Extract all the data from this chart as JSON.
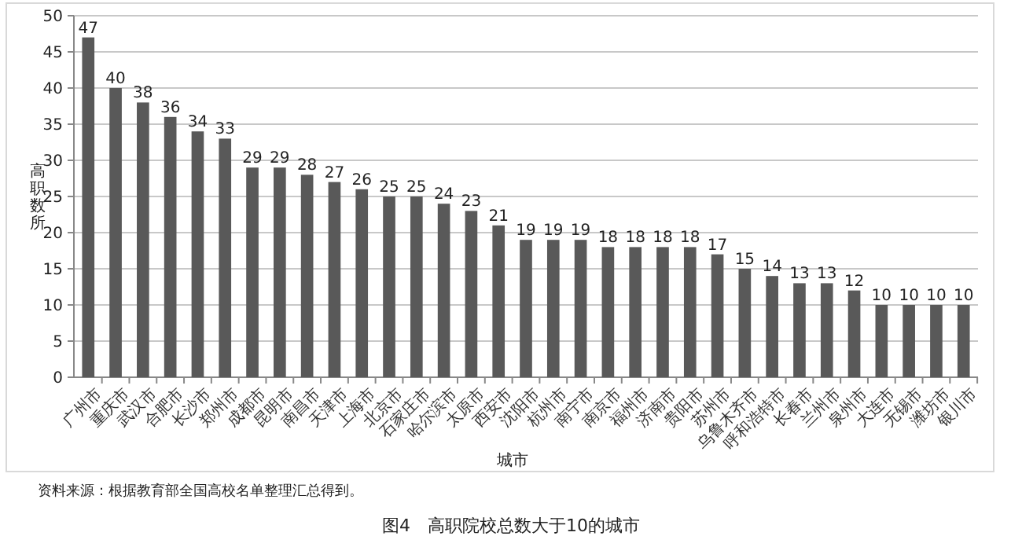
{
  "chart_data": {
    "type": "bar",
    "title": "图4　高职院校总数大于10的城市",
    "xlabel": "城市",
    "ylabel": "高职数所",
    "annotations": [
      "资料来源：根据教育部全国高校名单整理汇总得到。"
    ],
    "categories": [
      "广州市",
      "重庆市",
      "武汉市",
      "合肥市",
      "长沙市",
      "郑州市",
      "成都市",
      "昆明市",
      "南昌市",
      "天津市",
      "上海市",
      "北京市",
      "石家庄市",
      "哈尔滨市",
      "太原市",
      "西安市",
      "沈阳市",
      "杭州市",
      "南宁市",
      "南京市",
      "福州市",
      "济南市",
      "贵阳市",
      "苏州市",
      "乌鲁木齐市",
      "呼和浩特市",
      "长春市",
      "兰州市",
      "泉州市",
      "大连市",
      "无锡市",
      "潍坊市",
      "银川市"
    ],
    "values": [
      47,
      40,
      38,
      36,
      34,
      33,
      29,
      29,
      28,
      27,
      26,
      25,
      25,
      24,
      23,
      21,
      19,
      19,
      19,
      18,
      18,
      18,
      18,
      17,
      15,
      14,
      13,
      13,
      12,
      10,
      10,
      10,
      10
    ],
    "color": "#595959",
    "ylim": [
      0,
      50
    ],
    "yticks": [
      0,
      5,
      10,
      15,
      20,
      25,
      30,
      35,
      40,
      45,
      50
    ],
    "grid": "y",
    "data_labels": true
  }
}
